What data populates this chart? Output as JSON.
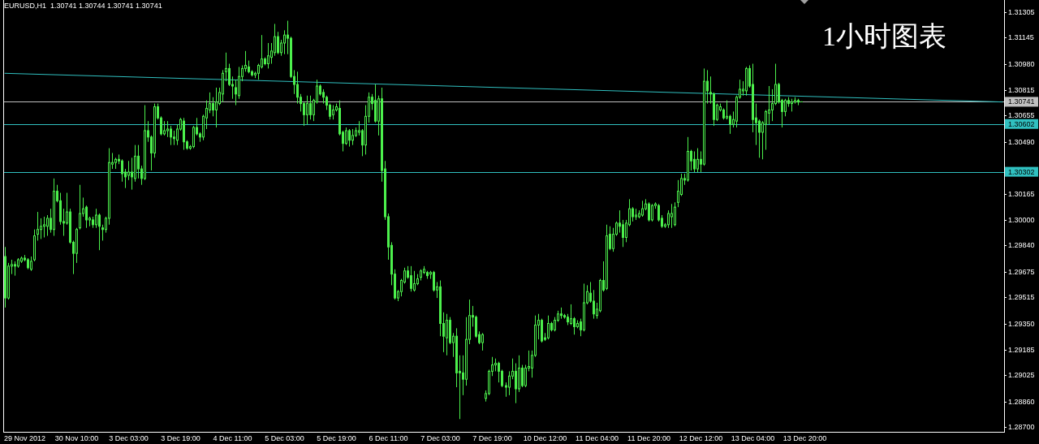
{
  "chart_data": {
    "type": "candlestick",
    "title": "EURUSD,H1  1.30741 1.30744 1.30741 1.30741",
    "annotations": [
      "1小时图表"
    ],
    "color": "#4cf04c",
    "ylim": [
      1.2867,
      1.3138
    ],
    "yticks": [
      {
        "value": 1.287,
        "label": "1.28700"
      },
      {
        "value": 1.2886,
        "label": "1.28860"
      },
      {
        "value": 1.29025,
        "label": "1.29025"
      },
      {
        "value": 1.29185,
        "label": "1.29185"
      },
      {
        "value": 1.2935,
        "label": "1.29350"
      },
      {
        "value": 1.29515,
        "label": "1.29515"
      },
      {
        "value": 1.29675,
        "label": "1.29675"
      },
      {
        "value": 1.2984,
        "label": "1.29840"
      },
      {
        "value": 1.3,
        "label": "1.30000"
      },
      {
        "value": 1.30165,
        "label": "1.30165"
      },
      {
        "value": 1.3049,
        "label": "1.30490"
      },
      {
        "value": 1.30655,
        "label": "1.30655"
      },
      {
        "value": 1.30815,
        "label": "1.30815"
      },
      {
        "value": 1.3098,
        "label": "1.30980"
      },
      {
        "value": 1.31145,
        "label": "1.31145"
      },
      {
        "value": 1.31305,
        "label": "1.31305"
      }
    ],
    "ref_lines": [
      {
        "axis": "y",
        "value": 1.30741,
        "label": "1.30741",
        "color": "#c0c0c0"
      },
      {
        "axis": "y",
        "value": 1.30602,
        "label": "1.30602",
        "color": "#30c0c0"
      },
      {
        "axis": "y",
        "value": 1.30302,
        "label": "1.30302",
        "color": "#30c0c0"
      }
    ],
    "categories": [
      null,
      null,
      null,
      null,
      null,
      null,
      "29 Nov 2012",
      null,
      null,
      null,
      null,
      null,
      null,
      null,
      null,
      null,
      null,
      null,
      null,
      null,
      null,
      null,
      "30 Nov 10:00",
      null,
      null,
      null,
      null,
      null,
      null,
      null,
      null,
      null,
      null,
      null,
      null,
      null,
      null,
      null,
      "3 Dec 03:00",
      null,
      null,
      null,
      null,
      null,
      null,
      null,
      null,
      null,
      null,
      null,
      null,
      null,
      null,
      null,
      "3 Dec 19:00",
      null,
      null,
      null,
      null,
      null,
      null,
      null,
      null,
      null,
      null,
      null,
      null,
      null,
      null,
      null,
      "4 Dec 11:00",
      null,
      null,
      null,
      null,
      null,
      null,
      null,
      null,
      null,
      null,
      null,
      null,
      null,
      null,
      null,
      "5 Dec 03:00",
      null,
      null,
      null,
      null,
      null,
      null,
      null,
      null,
      null,
      null,
      null,
      null,
      null,
      null,
      null,
      "5 Dec 19:00",
      null,
      null,
      null,
      null,
      null,
      null,
      null,
      null,
      null,
      null,
      null,
      null,
      null,
      null,
      null,
      "6 Dec 11:00",
      null,
      null,
      null,
      null,
      null,
      null,
      null,
      null,
      null,
      null,
      null,
      null,
      null,
      null,
      null,
      "7 Dec 03:00",
      null,
      null,
      null,
      null,
      null,
      null,
      null,
      null,
      null,
      null,
      null,
      null,
      null,
      null,
      null,
      "7 Dec 19:00",
      null,
      null,
      null,
      null,
      null,
      null,
      null,
      null,
      null,
      null,
      null,
      null,
      null,
      null,
      null,
      "10 Dec 12:00",
      null,
      null,
      null,
      null,
      null,
      null,
      null,
      null,
      null,
      null,
      null,
      null,
      null,
      null,
      null,
      "11 Dec 04:00",
      null,
      null,
      null,
      null,
      null,
      null,
      null,
      null,
      null,
      null,
      null,
      null,
      null,
      null,
      null,
      "11 Dec 20:00",
      null,
      null,
      null,
      null,
      null,
      null,
      null,
      null,
      null,
      null,
      null,
      null,
      null,
      null,
      null,
      "12 Dec 12:00",
      null,
      null,
      null,
      null,
      null,
      null,
      null,
      null,
      null,
      null,
      null,
      null,
      null,
      null,
      null,
      "13 Dec 04:00",
      null,
      null,
      null,
      null,
      null,
      null,
      null,
      null,
      null,
      null,
      null,
      null,
      null,
      null,
      null,
      "13 Dec 20:00",
      null,
      null,
      null,
      null,
      null,
      null,
      null,
      null,
      null,
      null,
      null,
      null,
      null,
      null,
      null,
      null,
      null,
      null,
      null,
      null,
      null,
      null,
      null,
      null,
      null,
      null,
      null,
      null,
      null,
      null,
      null,
      null,
      null,
      null,
      null,
      null,
      null,
      null,
      null,
      null,
      null,
      null,
      null,
      null,
      null,
      null,
      null,
      null,
      null,
      null,
      null,
      null,
      null,
      null,
      null,
      null,
      null,
      null,
      null,
      null,
      null
    ],
    "series": [
      {
        "type": "line",
        "color": "#30c0c0",
        "values": [
          1.3092,
          null,
          null,
          null,
          null,
          null,
          null,
          null,
          null,
          null,
          null,
          null,
          null,
          null,
          null,
          null,
          null,
          null,
          null,
          null,
          null,
          null,
          null,
          null,
          null,
          null,
          null,
          null,
          null,
          null,
          null,
          null,
          null,
          null,
          null,
          null,
          null,
          null,
          null,
          null,
          null,
          null,
          null,
          null,
          null,
          null,
          null,
          null,
          null,
          null,
          null,
          null,
          null,
          null,
          null,
          null,
          null,
          null,
          null,
          null,
          null,
          null,
          null,
          null,
          null,
          null,
          null,
          null,
          null,
          null,
          null,
          null,
          null,
          null,
          null,
          null,
          null,
          null,
          null,
          null,
          null,
          null,
          null,
          null,
          null,
          null,
          null,
          null,
          null,
          null,
          null,
          null,
          null,
          null,
          null,
          null,
          null,
          null,
          null,
          null,
          null,
          null,
          null,
          null,
          null,
          null,
          null,
          null,
          null,
          null,
          null,
          null,
          null,
          null,
          null,
          null,
          null,
          null,
          null,
          null,
          null,
          null,
          null,
          null,
          null,
          null,
          null,
          null,
          null,
          null,
          null,
          null,
          null,
          null,
          null,
          null,
          null,
          null,
          null,
          null,
          null,
          null,
          null,
          null,
          null,
          null,
          null,
          null,
          null,
          null,
          null,
          null,
          null,
          null,
          null,
          null,
          null,
          null,
          null,
          null,
          null,
          null,
          null,
          null,
          null,
          null,
          null,
          null,
          null,
          null,
          null,
          null,
          null,
          null,
          null,
          null,
          null,
          null,
          null,
          null,
          null,
          null,
          null,
          null,
          null,
          null,
          null,
          null,
          null,
          null,
          null,
          null,
          null,
          null,
          null,
          null,
          null,
          null,
          null,
          null,
          null,
          null,
          null,
          null,
          null,
          null,
          null,
          null,
          null,
          null,
          null,
          null,
          null,
          null,
          null,
          null,
          null,
          null,
          null,
          null,
          null,
          null,
          null,
          null,
          null,
          null,
          null,
          null,
          null,
          null,
          null,
          null,
          null,
          null,
          null,
          null,
          null,
          null,
          null,
          null,
          null,
          null,
          null,
          null,
          null,
          null,
          null,
          null,
          null,
          null,
          null,
          null,
          null,
          null,
          null,
          null,
          null,
          null,
          null,
          null,
          null,
          null,
          null,
          null,
          null,
          null,
          null,
          null,
          null,
          null,
          null,
          null,
          null,
          null,
          null,
          null,
          null,
          null,
          null,
          null,
          null,
          null,
          null,
          null,
          null,
          null,
          null,
          null,
          null,
          null,
          null,
          null,
          null,
          null,
          null,
          null,
          null,
          null,
          null,
          null,
          null,
          null,
          null,
          null,
          null,
          null,
          null,
          1.3074
        ]
      }
    ],
    "ohlc": [
      [
        1.2977,
        1.2983,
        1.2945,
        1.2951
      ],
      [
        1.2951,
        1.2973,
        1.295,
        1.2971
      ],
      [
        1.2971,
        1.2975,
        1.2966,
        1.2972
      ],
      [
        1.2972,
        1.2974,
        1.2965,
        1.2971
      ],
      [
        1.2971,
        1.2976,
        1.297,
        1.2975
      ],
      [
        1.2974,
        1.2977,
        1.2973,
        1.2976
      ],
      [
        1.2976,
        1.2978,
        1.2974,
        1.2975
      ],
      [
        1.2975,
        1.2976,
        1.2969,
        1.297
      ],
      [
        1.2969,
        1.2977,
        1.2968,
        1.2974
      ],
      [
        1.2975,
        1.2994,
        1.2974,
        1.299
      ],
      [
        1.2991,
        1.3005,
        1.2987,
        1.2994
      ],
      [
        1.2994,
        1.3001,
        1.2988,
        1.2996
      ],
      [
        1.2996,
        1.3002,
        1.2989,
        1.2997
      ],
      [
        1.2996,
        1.3003,
        1.299,
        1.3001
      ],
      [
        1.3001,
        1.3007,
        1.2992,
        1.2994
      ],
      [
        1.2994,
        1.3026,
        1.299,
        1.3018
      ],
      [
        1.3018,
        1.3022,
        1.3011,
        1.3012
      ],
      [
        1.3012,
        1.3017,
        1.2997,
        1.2999
      ],
      [
        1.2999,
        1.3007,
        1.299,
        1.2998
      ],
      [
        1.2998,
        1.3017,
        1.2997,
        1.3005
      ],
      [
        1.3005,
        1.3007,
        1.2985,
        1.2986
      ],
      [
        1.2986,
        1.2987,
        1.2966,
        1.2979
      ],
      [
        1.2979,
        1.2995,
        1.2973,
        1.2994
      ],
      [
        1.2995,
        1.3022,
        1.2994,
        1.3004
      ],
      [
        1.3004,
        1.3014,
        1.3002,
        1.3007
      ],
      [
        1.3008,
        1.3009,
        1.2995,
        1.3
      ],
      [
        1.3,
        1.3002,
        1.2996,
        1.3001
      ],
      [
        1.3,
        1.3002,
        1.2995,
        1.2997
      ],
      [
        1.2997,
        1.3007,
        1.2995,
        1.3003
      ],
      [
        1.3003,
        1.3004,
        1.2981,
        1.2996
      ],
      [
        1.2995,
        1.2997,
        1.2987,
        1.2994
      ],
      [
        1.2994,
        1.3002,
        1.2992,
        1.3001
      ],
      [
        1.3001,
        1.3045,
        1.2997,
        1.3036
      ],
      [
        1.3035,
        1.3042,
        1.3032,
        1.3036
      ],
      [
        1.3036,
        1.3039,
        1.3032,
        1.3038
      ],
      [
        1.3038,
        1.3041,
        1.3035,
        1.3037
      ],
      [
        1.3037,
        1.3038,
        1.3024,
        1.3029
      ],
      [
        1.303,
        1.3032,
        1.302,
        1.3027
      ],
      [
        1.3028,
        1.3037,
        1.3025,
        1.303
      ],
      [
        1.303,
        1.3039,
        1.3019,
        1.3027
      ],
      [
        1.3026,
        1.3047,
        1.3024,
        1.304
      ],
      [
        1.304,
        1.3047,
        1.3026,
        1.3032
      ],
      [
        1.3032,
        1.3034,
        1.3022,
        1.3026
      ],
      [
        1.3026,
        1.3072,
        1.3025,
        1.3056
      ],
      [
        1.3056,
        1.3062,
        1.3049,
        1.3052
      ],
      [
        1.3052,
        1.3053,
        1.3031,
        1.3042
      ],
      [
        1.3042,
        1.3073,
        1.3039,
        1.3071
      ],
      [
        1.3071,
        1.3073,
        1.3063,
        1.3064
      ],
      [
        1.3064,
        1.3065,
        1.3053,
        1.3054
      ],
      [
        1.3054,
        1.3062,
        1.3053,
        1.3056
      ],
      [
        1.3056,
        1.3062,
        1.3052,
        1.3057
      ],
      [
        1.3057,
        1.3059,
        1.3047,
        1.3052
      ],
      [
        1.3052,
        1.3056,
        1.3047,
        1.3051
      ],
      [
        1.305,
        1.306,
        1.3047,
        1.3057
      ],
      [
        1.3057,
        1.3064,
        1.3056,
        1.3063
      ],
      [
        1.3062,
        1.3064,
        1.3044,
        1.3049
      ],
      [
        1.3049,
        1.305,
        1.3044,
        1.3045
      ],
      [
        1.3045,
        1.3047,
        1.3044,
        1.3046
      ],
      [
        1.3046,
        1.3059,
        1.3045,
        1.3058
      ],
      [
        1.3058,
        1.3064,
        1.3053,
        1.3054
      ],
      [
        1.3054,
        1.3055,
        1.3049,
        1.3052
      ],
      [
        1.3052,
        1.3066,
        1.305,
        1.3065
      ],
      [
        1.3064,
        1.3075,
        1.3057,
        1.307
      ],
      [
        1.3069,
        1.308,
        1.3067,
        1.3073
      ],
      [
        1.3073,
        1.3077,
        1.3065,
        1.3069
      ],
      [
        1.3069,
        1.3083,
        1.3058,
        1.3074
      ],
      [
        1.3073,
        1.3083,
        1.3072,
        1.308
      ],
      [
        1.3079,
        1.3094,
        1.3074,
        1.3092
      ],
      [
        1.3093,
        1.3105,
        1.3087,
        1.3095
      ],
      [
        1.3095,
        1.3098,
        1.3084,
        1.3085
      ],
      [
        1.3085,
        1.309,
        1.3076,
        1.3084
      ],
      [
        1.3083,
        1.3088,
        1.3072,
        1.3079
      ],
      [
        1.3078,
        1.3096,
        1.3076,
        1.309
      ],
      [
        1.309,
        1.3097,
        1.3087,
        1.3095
      ],
      [
        1.3095,
        1.3106,
        1.3093,
        1.3097
      ],
      [
        1.3096,
        1.31,
        1.3092,
        1.3093
      ],
      [
        1.3093,
        1.3094,
        1.309,
        1.3091
      ],
      [
        1.3091,
        1.3093,
        1.3089,
        1.3092
      ],
      [
        1.3092,
        1.3098,
        1.3088,
        1.3097
      ],
      [
        1.3096,
        1.3116,
        1.3095,
        1.3101
      ],
      [
        1.3101,
        1.3102,
        1.3097,
        1.3098
      ],
      [
        1.3098,
        1.3111,
        1.3095,
        1.3103
      ],
      [
        1.3102,
        1.3111,
        1.3098,
        1.3106
      ],
      [
        1.3105,
        1.3123,
        1.3103,
        1.3115
      ],
      [
        1.3115,
        1.3118,
        1.3104,
        1.3105
      ],
      [
        1.3105,
        1.3113,
        1.3103,
        1.3111
      ],
      [
        1.3111,
        1.3119,
        1.3104,
        1.3116
      ],
      [
        1.3116,
        1.3125,
        1.3104,
        1.3114
      ],
      [
        1.3114,
        1.3115,
        1.3089,
        1.309
      ],
      [
        1.309,
        1.3094,
        1.3079,
        1.3085
      ],
      [
        1.3085,
        1.3093,
        1.3073,
        1.3077
      ],
      [
        1.3077,
        1.3079,
        1.3068,
        1.3073
      ],
      [
        1.3073,
        1.3074,
        1.3059,
        1.3066
      ],
      [
        1.3066,
        1.3078,
        1.306,
        1.3073
      ],
      [
        1.3073,
        1.3078,
        1.3063,
        1.3066
      ],
      [
        1.3066,
        1.3076,
        1.3062,
        1.3075
      ],
      [
        1.3074,
        1.3088,
        1.3073,
        1.3084
      ],
      [
        1.3084,
        1.3085,
        1.3078,
        1.3079
      ],
      [
        1.308,
        1.3082,
        1.3073,
        1.3077
      ],
      [
        1.3077,
        1.3078,
        1.3069,
        1.3072
      ],
      [
        1.3072,
        1.3073,
        1.3063,
        1.3065
      ],
      [
        1.3066,
        1.3072,
        1.3063,
        1.3069
      ],
      [
        1.3069,
        1.3073,
        1.3068,
        1.3071
      ],
      [
        1.307,
        1.3075,
        1.3053,
        1.3054
      ],
      [
        1.3055,
        1.3056,
        1.3043,
        1.3048
      ],
      [
        1.3048,
        1.3058,
        1.3047,
        1.3056
      ],
      [
        1.3056,
        1.3057,
        1.3046,
        1.305
      ],
      [
        1.305,
        1.3057,
        1.3047,
        1.3053
      ],
      [
        1.3053,
        1.3058,
        1.3052,
        1.3056
      ],
      [
        1.3055,
        1.3062,
        1.3053,
        1.3056
      ],
      [
        1.3056,
        1.3057,
        1.304,
        1.3047
      ],
      [
        1.3047,
        1.3072,
        1.3041,
        1.3065
      ],
      [
        1.3065,
        1.308,
        1.3061,
        1.3077
      ],
      [
        1.3077,
        1.3079,
        1.3069,
        1.3073
      ],
      [
        1.3075,
        1.3085,
        1.3061,
        1.3062
      ],
      [
        1.3062,
        1.3078,
        1.3053,
        1.3076
      ],
      [
        1.3076,
        1.3083,
        1.3024,
        1.3031
      ],
      [
        1.3032,
        1.3037,
        1.3,
        1.3002
      ],
      [
        1.3002,
        1.3004,
        1.2975,
        1.2983
      ],
      [
        1.2984,
        1.2986,
        1.2959,
        1.2966
      ],
      [
        1.2966,
        1.2969,
        1.295,
        1.2951
      ],
      [
        1.2951,
        1.2956,
        1.2949,
        1.2955
      ],
      [
        1.2955,
        1.2963,
        1.2952,
        1.2962
      ],
      [
        1.2961,
        1.297,
        1.296,
        1.2968
      ],
      [
        1.2968,
        1.2971,
        1.2963,
        1.2964
      ],
      [
        1.2965,
        1.2971,
        1.2955,
        1.2957
      ],
      [
        1.2956,
        1.2968,
        1.2955,
        1.296
      ],
      [
        1.296,
        1.2966,
        1.2959,
        1.2963
      ],
      [
        1.2964,
        1.2969,
        1.2962,
        1.2968
      ],
      [
        1.2967,
        1.2971,
        1.2966,
        1.2969
      ],
      [
        1.2967,
        1.2968,
        1.2963,
        1.2965
      ],
      [
        1.2966,
        1.2968,
        1.2963,
        1.2967
      ],
      [
        1.2967,
        1.2968,
        1.2955,
        1.2956
      ],
      [
        1.2956,
        1.2961,
        1.2951,
        1.2958
      ],
      [
        1.2958,
        1.2962,
        1.2927,
        1.2935
      ],
      [
        1.2935,
        1.2942,
        1.2917,
        1.2927
      ],
      [
        1.2926,
        1.2941,
        1.2915,
        1.2937
      ],
      [
        1.2937,
        1.2939,
        1.2922,
        1.2923
      ],
      [
        1.2923,
        1.2929,
        1.2914,
        1.2927
      ],
      [
        1.2927,
        1.2932,
        1.2895,
        1.2904
      ],
      [
        1.2905,
        1.2915,
        1.2875,
        1.2904
      ],
      [
        1.2904,
        1.2915,
        1.289,
        1.29
      ],
      [
        1.29,
        1.2939,
        1.2896,
        1.2925
      ],
      [
        1.2925,
        1.295,
        1.2922,
        1.294
      ],
      [
        1.294,
        1.2946,
        1.2933,
        1.2939
      ],
      [
        1.2939,
        1.294,
        1.2926,
        1.2927
      ],
      [
        1.2928,
        1.293,
        1.2922,
        1.2923
      ],
      [
        1.2923,
        1.2929,
        1.2918,
        1.2928
      ],
      [
        1.2888,
        1.2893,
        1.2886,
        1.2891
      ],
      [
        1.2891,
        1.2906,
        1.289,
        1.2905
      ],
      [
        1.2905,
        1.2914,
        1.2902,
        1.2909
      ],
      [
        1.2909,
        1.2913,
        1.2905,
        1.291
      ],
      [
        1.291,
        1.2911,
        1.2898,
        1.2905
      ],
      [
        1.2905,
        1.2906,
        1.2895,
        1.2896
      ],
      [
        1.2896,
        1.2898,
        1.2889,
        1.2895
      ],
      [
        1.2895,
        1.2905,
        1.289,
        1.2902
      ],
      [
        1.2902,
        1.2913,
        1.29,
        1.2905
      ],
      [
        1.2905,
        1.291,
        1.2885,
        1.2894
      ],
      [
        1.2894,
        1.2915,
        1.2892,
        1.2907
      ],
      [
        1.2907,
        1.2909,
        1.2895,
        1.2896
      ],
      [
        1.2896,
        1.2909,
        1.2895,
        1.2907
      ],
      [
        1.2907,
        1.2918,
        1.2905,
        1.2908
      ],
      [
        1.2907,
        1.2918,
        1.2901,
        1.2915
      ],
      [
        1.2915,
        1.294,
        1.2914,
        1.2934
      ],
      [
        1.2934,
        1.2941,
        1.2925,
        1.2937
      ],
      [
        1.2937,
        1.2938,
        1.2923,
        1.2924
      ],
      [
        1.2926,
        1.2929,
        1.2924,
        1.2925
      ],
      [
        1.2926,
        1.294,
        1.2925,
        1.2935
      ],
      [
        1.2935,
        1.2936,
        1.293,
        1.2931
      ],
      [
        1.2931,
        1.2939,
        1.293,
        1.2937
      ],
      [
        1.2937,
        1.2943,
        1.2936,
        1.2941
      ],
      [
        1.2941,
        1.2945,
        1.2938,
        1.294
      ],
      [
        1.294,
        1.2941,
        1.2938,
        1.2939
      ],
      [
        1.2939,
        1.2941,
        1.2934,
        1.2936
      ],
      [
        1.2935,
        1.2947,
        1.2934,
        1.2938
      ],
      [
        1.2938,
        1.2939,
        1.2928,
        1.2933
      ],
      [
        1.2933,
        1.2937,
        1.2932,
        1.2935
      ],
      [
        1.2936,
        1.2938,
        1.2927,
        1.2931
      ],
      [
        1.2931,
        1.296,
        1.293,
        1.2948
      ],
      [
        1.2948,
        1.2959,
        1.2947,
        1.2955
      ],
      [
        1.2954,
        1.2961,
        1.2948,
        1.2949
      ],
      [
        1.2949,
        1.2956,
        1.2938,
        1.2941
      ],
      [
        1.294,
        1.2948,
        1.2938,
        1.2944
      ],
      [
        1.2943,
        1.2963,
        1.2942,
        1.2962
      ],
      [
        1.2962,
        1.2974,
        1.2955,
        1.2956
      ],
      [
        1.2957,
        1.2997,
        1.2956,
        1.299
      ],
      [
        1.2991,
        1.2996,
        1.2981,
        1.2982
      ],
      [
        1.2982,
        1.2995,
        1.298,
        1.2991
      ],
      [
        1.2991,
        1.2999,
        1.299,
        1.2998
      ],
      [
        1.2998,
        1.3006,
        1.2992,
        1.2996
      ],
      [
        1.2997,
        1.3,
        1.2983,
        1.2989
      ],
      [
        1.2989,
        1.3,
        1.2986,
        1.2998
      ],
      [
        1.2997,
        1.3013,
        1.2996,
        1.3007
      ],
      [
        1.3007,
        1.3008,
        1.2999,
        1.3002
      ],
      [
        1.3002,
        1.3007,
        1.3,
        1.3003
      ],
      [
        1.3002,
        1.3006,
        1.3001,
        1.3004
      ],
      [
        1.3003,
        1.3012,
        1.3002,
        1.3007
      ],
      [
        1.3007,
        1.3013,
        1.3006,
        1.301
      ],
      [
        1.301,
        1.3011,
        1.2999,
        1.3
      ],
      [
        1.3,
        1.301,
        1.2999,
        1.3009
      ],
      [
        1.3009,
        1.3011,
        1.3007,
        1.301
      ],
      [
        1.3009,
        1.301,
        1.2999,
        1.3
      ],
      [
        1.3001,
        1.3003,
        1.2995,
        1.2996
      ],
      [
        1.2996,
        1.2998,
        1.2995,
        1.2997
      ],
      [
        1.2997,
        1.3006,
        1.2995,
        1.3004
      ],
      [
        1.3002,
        1.301,
        1.2995,
        1.3004
      ],
      [
        1.2997,
        1.3011,
        1.2996,
        1.3008
      ],
      [
        1.3011,
        1.3025,
        1.3008,
        1.3018
      ],
      [
        1.3016,
        1.3029,
        1.3015,
        1.3026
      ],
      [
        1.3026,
        1.3029,
        1.3022,
        1.3025
      ],
      [
        1.3025,
        1.3052,
        1.3024,
        1.3043
      ],
      [
        1.3043,
        1.3044,
        1.3031,
        1.3037
      ],
      [
        1.3038,
        1.3043,
        1.303,
        1.3032
      ],
      [
        1.3032,
        1.3045,
        1.303,
        1.3038
      ],
      [
        1.3038,
        1.3043,
        1.303,
        1.3035
      ],
      [
        1.3035,
        1.3095,
        1.3034,
        1.3087
      ],
      [
        1.3087,
        1.3094,
        1.3073,
        1.3081
      ],
      [
        1.308,
        1.309,
        1.3073,
        1.3079
      ],
      [
        1.3079,
        1.308,
        1.3059,
        1.3063
      ],
      [
        1.3063,
        1.3073,
        1.3062,
        1.3072
      ],
      [
        1.3069,
        1.3073,
        1.3068,
        1.3071
      ],
      [
        1.3069,
        1.307,
        1.3063,
        1.3064
      ],
      [
        1.3064,
        1.3075,
        1.3063,
        1.3065
      ],
      [
        1.3065,
        1.3066,
        1.3054,
        1.306
      ],
      [
        1.306,
        1.3068,
        1.3058,
        1.3063
      ],
      [
        1.3062,
        1.3078,
        1.3058,
        1.3077
      ],
      [
        1.3077,
        1.3088,
        1.3076,
        1.3082
      ],
      [
        1.3081,
        1.3087,
        1.3078,
        1.3082
      ],
      [
        1.3081,
        1.3096,
        1.3078,
        1.3095
      ],
      [
        1.3095,
        1.3097,
        1.3083,
        1.3084
      ],
      [
        1.3085,
        1.3098,
        1.3055,
        1.3063
      ],
      [
        1.3064,
        1.3073,
        1.3047,
        1.3061
      ],
      [
        1.3062,
        1.3063,
        1.3039,
        1.3055
      ],
      [
        1.3055,
        1.3062,
        1.3038,
        1.3061
      ],
      [
        1.306,
        1.3069,
        1.3044,
        1.3068
      ],
      [
        1.3067,
        1.3084,
        1.306,
        1.3069
      ],
      [
        1.3069,
        1.3082,
        1.3062,
        1.3073
      ],
      [
        1.3073,
        1.3098,
        1.3072,
        1.3085
      ],
      [
        1.3085,
        1.3086,
        1.3073,
        1.3074
      ],
      [
        1.3075,
        1.3076,
        1.3058,
        1.3068
      ],
      [
        1.3068,
        1.3076,
        1.3065,
        1.3075
      ],
      [
        1.3075,
        1.3077,
        1.3071,
        1.3073
      ],
      [
        1.3073,
        1.3076,
        1.3068,
        1.3074
      ],
      [
        1.3074,
        1.3077,
        1.3073,
        1.3075
      ],
      [
        1.3075,
        1.3076,
        1.3072,
        1.3074
      ],
      [
        1.30741,
        1.30744,
        1.30741,
        1.30741
      ],
      null,
      null,
      null,
      null,
      null,
      null,
      null,
      null,
      null,
      null,
      null,
      null,
      null,
      null,
      null,
      null,
      null,
      null,
      null,
      null,
      null,
      null,
      null,
      null,
      null,
      null,
      null,
      null,
      null,
      null,
      null,
      null,
      null,
      null,
      null,
      null,
      null,
      null,
      null,
      null,
      null,
      null,
      null,
      null,
      null,
      null,
      null,
      null,
      null,
      null,
      null,
      null,
      null,
      null,
      null,
      null,
      null,
      null,
      null,
      null,
      null,
      null
    ]
  }
}
